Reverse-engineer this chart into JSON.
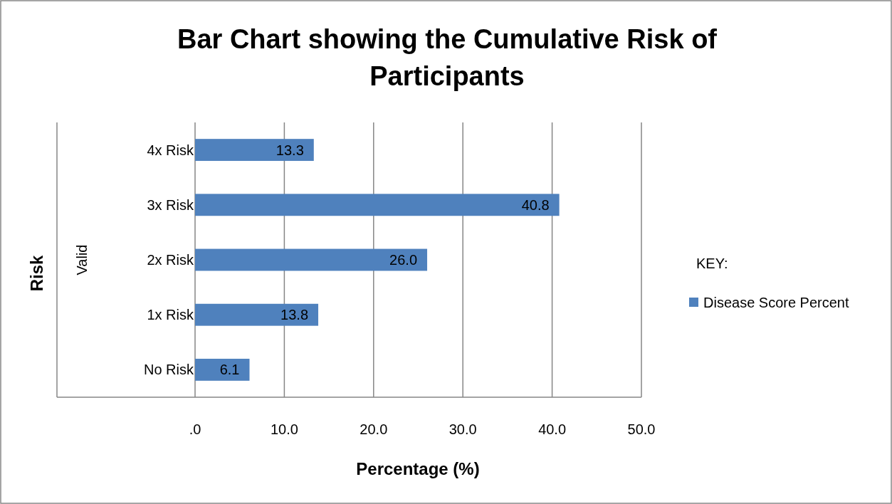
{
  "chart_data": {
    "type": "bar",
    "orientation": "horizontal",
    "title": "Bar Chart showing the Cumulative Risk of Participants",
    "xlabel": "Percentage (%)",
    "legend_title": "KEY:",
    "annotations": [
      "Risk",
      "Valid"
    ],
    "categories": [
      "4x Risk",
      "3x Risk",
      "2x Risk",
      "1x Risk",
      "No Risk"
    ],
    "series": [
      {
        "name": "Disease Score Percent",
        "color": "#4f81bd",
        "values": [
          13.3,
          40.8,
          26.0,
          13.8,
          6.1
        ],
        "value_labels": [
          "13.3",
          "40.8",
          "26.0",
          "13.8",
          "6.1"
        ]
      }
    ],
    "xlim": [
      0,
      50
    ],
    "xticks": [
      {
        "value": 0,
        "label": ".0"
      },
      {
        "value": 10,
        "label": "10.0"
      },
      {
        "value": 20,
        "label": "20.0"
      },
      {
        "value": 30,
        "label": "30.0"
      },
      {
        "value": 40,
        "label": "40.0"
      },
      {
        "value": 50,
        "label": "50.0"
      }
    ],
    "grid": "x",
    "legend": "right"
  }
}
